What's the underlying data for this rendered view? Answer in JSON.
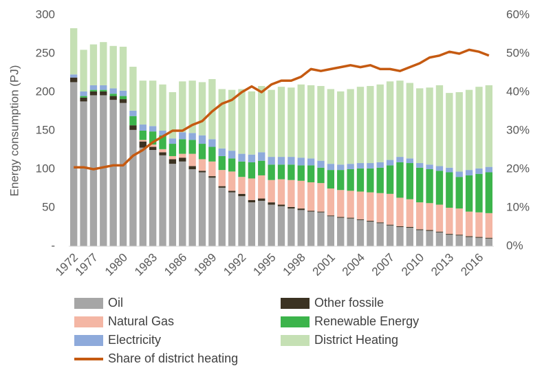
{
  "chart_data": {
    "type": "bar",
    "stacked": true,
    "y_label": "Energy consumption (PJ)",
    "categories": [
      "1972",
      null,
      "1977",
      null,
      null,
      "1980",
      null,
      null,
      "1983",
      null,
      null,
      "1986",
      null,
      null,
      "1989",
      null,
      null,
      "1992",
      null,
      null,
      "1995",
      null,
      null,
      "1998",
      null,
      null,
      "2001",
      null,
      null,
      "2004",
      null,
      null,
      "2007",
      null,
      null,
      "2010",
      null,
      null,
      "2013",
      null,
      null,
      "2016",
      null
    ],
    "ylim": [
      0,
      300
    ],
    "yticks": [
      {
        "value": 0,
        "label": "-"
      },
      50,
      100,
      150,
      200,
      250,
      300
    ],
    "y2lim": [
      0,
      60
    ],
    "y2ticks": [
      {
        "value": 0,
        "label": "0%"
      },
      {
        "value": 10,
        "label": "10%"
      },
      {
        "value": 20,
        "label": "20%"
      },
      {
        "value": 30,
        "label": "30%"
      },
      {
        "value": 40,
        "label": "40%"
      },
      {
        "value": 50,
        "label": "50%"
      },
      {
        "value": 60,
        "label": "60%"
      }
    ],
    "series": [
      {
        "name": "Oil",
        "color": "#a6a6a6",
        "values": [
          213,
          188,
          196,
          196,
          190,
          186,
          151,
          128,
          125,
          118,
          107,
          110,
          100,
          96,
          89,
          76,
          70,
          65,
          57,
          59,
          54,
          52,
          49,
          47,
          45,
          44,
          39,
          37,
          36,
          34,
          32,
          30,
          27,
          25,
          24,
          21,
          20,
          18,
          15,
          14,
          12,
          11,
          10
        ]
      },
      {
        "name": "Other fossile",
        "color": "#3b3222",
        "values": [
          6,
          5,
          5,
          5,
          5,
          5,
          6,
          8,
          4,
          4,
          6,
          5,
          4,
          2,
          2,
          2,
          2,
          3,
          3,
          3,
          3,
          2,
          2,
          2,
          1,
          1,
          1,
          1,
          1,
          1,
          1,
          1,
          1,
          1,
          1,
          1,
          1,
          1,
          1,
          1,
          1,
          1,
          1
        ]
      },
      {
        "name": "Natural Gas",
        "color": "#f4b6a4",
        "values": [
          0,
          0,
          0,
          0,
          0,
          0,
          0,
          2,
          3,
          4,
          4,
          5,
          16,
          15,
          19,
          21,
          25,
          22,
          28,
          30,
          29,
          33,
          35,
          36,
          37,
          37,
          35,
          35,
          35,
          36,
          37,
          38,
          40,
          37,
          36,
          35,
          35,
          35,
          34,
          34,
          32,
          32,
          32
        ]
      },
      {
        "name": "Renewable Energy",
        "color": "#3cb44b",
        "values": [
          0,
          2,
          2,
          2,
          3,
          4,
          12,
          12,
          17,
          18,
          16,
          19,
          18,
          20,
          19,
          18,
          17,
          20,
          21,
          19,
          20,
          19,
          20,
          20,
          22,
          20,
          24,
          26,
          28,
          30,
          31,
          33,
          37,
          46,
          47,
          45,
          44,
          44,
          46,
          41,
          47,
          50,
          53
        ]
      },
      {
        "name": "Electricity",
        "color": "#8eaadb",
        "values": [
          4,
          6,
          6,
          6,
          7,
          7,
          7,
          8,
          7,
          6,
          7,
          9,
          9,
          11,
          10,
          10,
          10,
          10,
          10,
          11,
          10,
          10,
          10,
          10,
          9,
          9,
          8,
          7,
          7,
          7,
          7,
          7,
          7,
          7,
          6,
          6,
          6,
          6,
          6,
          7,
          7,
          7,
          7
        ]
      },
      {
        "name": "District Heating",
        "color": "#c5e0b4",
        "values": [
          60,
          54,
          53,
          56,
          55,
          57,
          57,
          57,
          59,
          60,
          60,
          66,
          68,
          69,
          78,
          77,
          79,
          84,
          82,
          86,
          87,
          91,
          90,
          95,
          95,
          97,
          97,
          95,
          97,
          99,
          100,
          101,
          102,
          99,
          98,
          97,
          100,
          105,
          97,
          103,
          104,
          106,
          106
        ]
      },
      {
        "name": "Share of district heating",
        "type": "line",
        "axis": "y2",
        "color": "#c55a11",
        "values": [
          20.5,
          20.5,
          20,
          20.5,
          21,
          21,
          23.5,
          25,
          27,
          28.5,
          30,
          30,
          31.5,
          32.5,
          35,
          37,
          38,
          40,
          41.5,
          40,
          42,
          43,
          43,
          44,
          46,
          45.5,
          46,
          46.5,
          47,
          46.5,
          47,
          46,
          46,
          45.5,
          46.5,
          47.5,
          49,
          49.5,
          50.5,
          50,
          51,
          50.5,
          49.5
        ]
      }
    ]
  }
}
